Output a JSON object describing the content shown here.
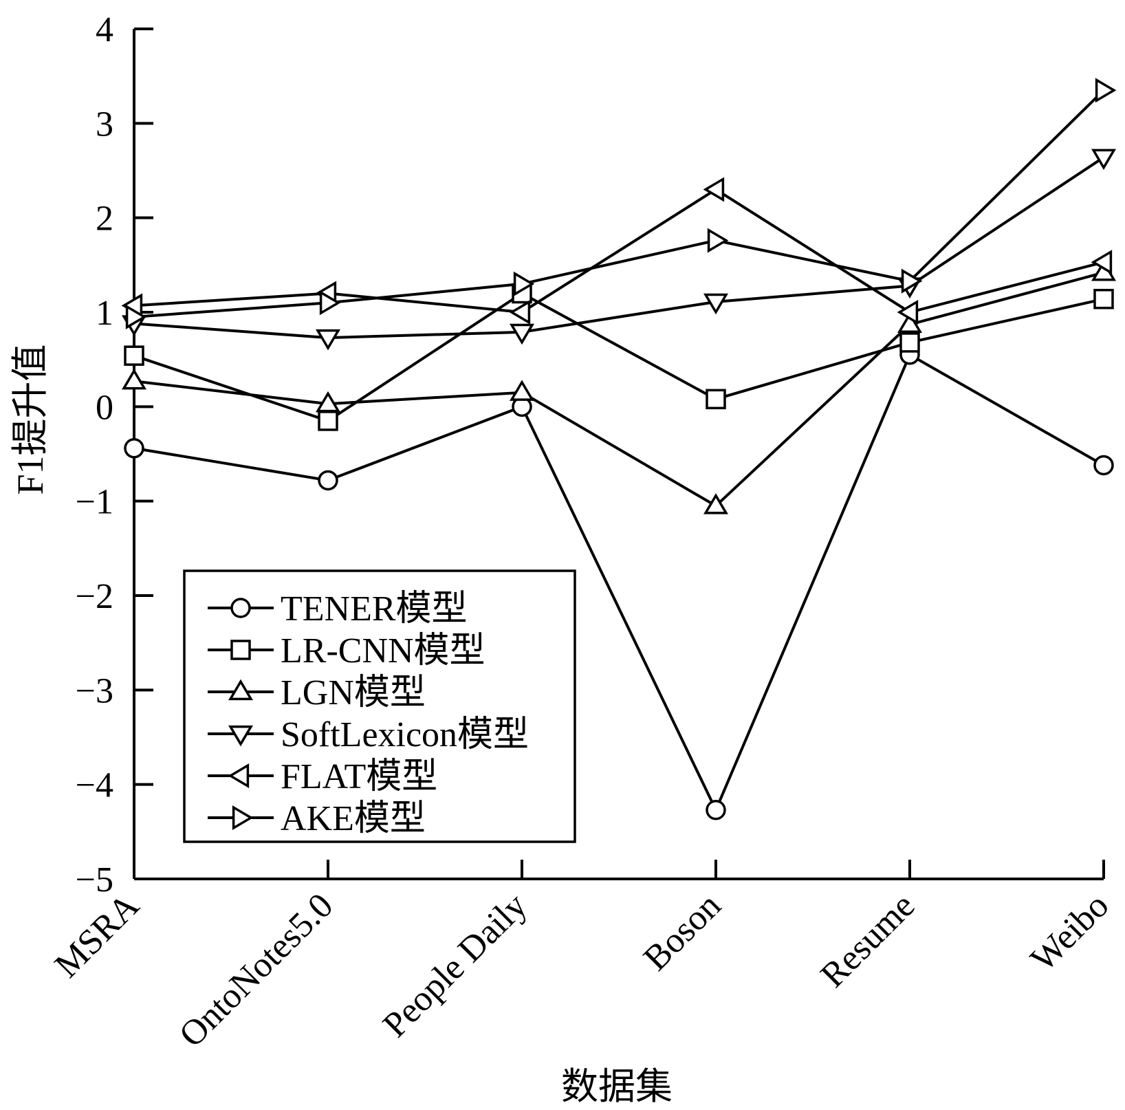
{
  "chart_data": {
    "type": "line",
    "xlabel": "数据集",
    "ylabel": "F1提升值",
    "ylim": [
      -5,
      4
    ],
    "yticks": [
      "4",
      "3",
      "2",
      "1",
      "0",
      "−1",
      "−2",
      "−3",
      "−4",
      "−5"
    ],
    "categories": [
      "MSRA",
      "OntoNotes5.0",
      "People Daily",
      "Boson",
      "Resume",
      "Weibo"
    ],
    "grid": false,
    "legend_position": "lower-left",
    "series": [
      {
        "name": "TENER模型",
        "marker": "circle",
        "values": [
          -0.44,
          -0.78,
          0.0,
          -4.27,
          0.55,
          -0.62
        ]
      },
      {
        "name": "LR-CNN模型",
        "marker": "square",
        "values": [
          0.54,
          -0.15,
          1.2,
          0.08,
          0.68,
          1.14
        ]
      },
      {
        "name": "LGN模型",
        "marker": "triangle-up",
        "values": [
          0.27,
          0.03,
          0.15,
          -1.05,
          0.87,
          1.42
        ]
      },
      {
        "name": "SoftLexicon模型",
        "marker": "triangle-down",
        "values": [
          0.88,
          0.73,
          0.79,
          1.11,
          1.28,
          2.64
        ]
      },
      {
        "name": "FLAT模型",
        "marker": "triangle-left",
        "values": [
          1.07,
          1.2,
          1.0,
          2.3,
          1.0,
          1.53
        ]
      },
      {
        "name": "AKE模型",
        "marker": "triangle-right",
        "values": [
          0.95,
          1.1,
          1.3,
          1.76,
          1.33,
          3.35
        ]
      }
    ]
  }
}
